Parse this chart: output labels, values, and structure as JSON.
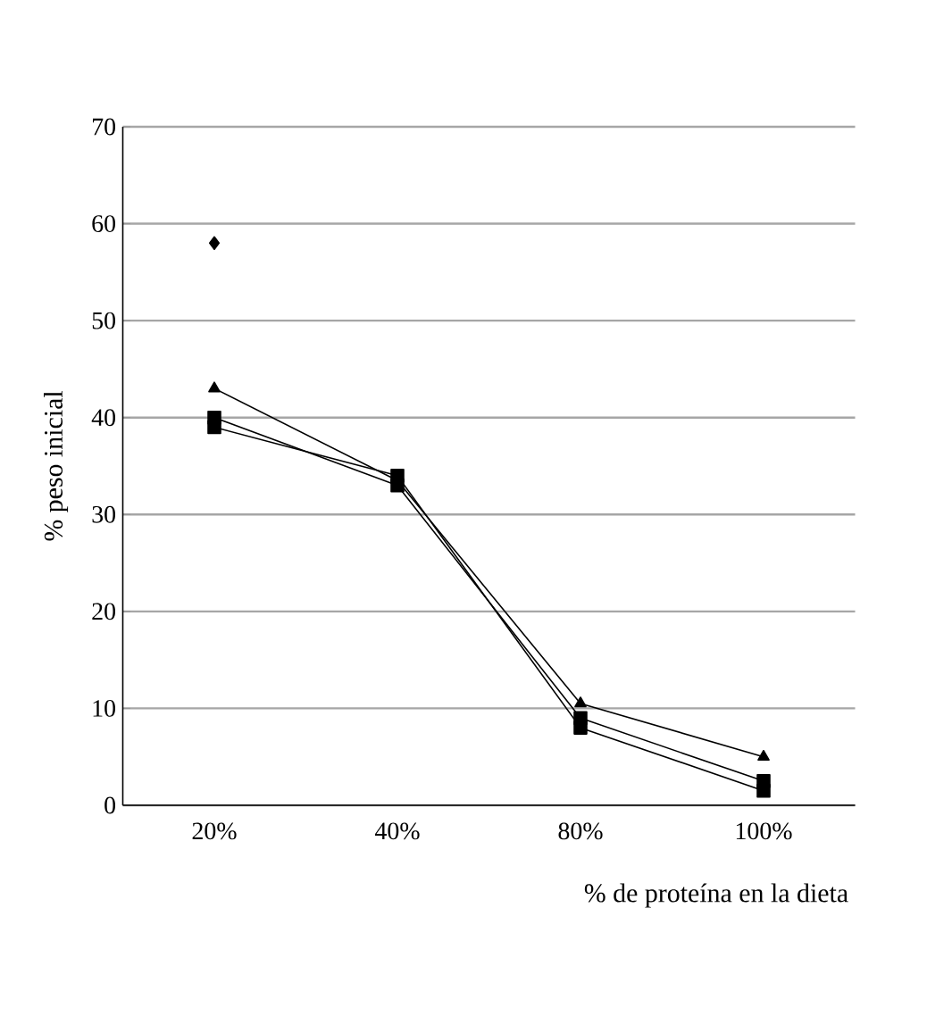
{
  "chart_data": {
    "type": "line",
    "xlabel": "% de proteína en la dieta",
    "ylabel": "% peso inicial",
    "categories": [
      "20%",
      "40%",
      "80%",
      "100%"
    ],
    "series": [
      {
        "color": "#000000",
        "marker": "diamond",
        "values": [
          58,
          null,
          null,
          null
        ]
      },
      {
        "color": "#000000",
        "marker": "triangle",
        "values": [
          43,
          33.5,
          10.5,
          5
        ]
      },
      {
        "color": "#000000",
        "marker": "square",
        "values": [
          40,
          33,
          9,
          2.5
        ]
      },
      {
        "color": "#000000",
        "marker": "square",
        "values": [
          39,
          34,
          8,
          1.5
        ]
      }
    ],
    "ylim": [
      0,
      70
    ],
    "yticks": [
      0,
      10,
      20,
      30,
      40,
      50,
      60,
      70
    ],
    "grid": "y",
    "line_style": "solid"
  }
}
